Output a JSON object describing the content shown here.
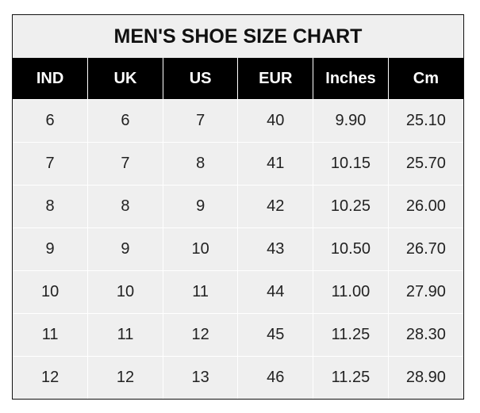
{
  "title": "MEN'S SHOE SIZE CHART",
  "columns": [
    "IND",
    "UK",
    "US",
    "EUR",
    "Inches",
    "Cm"
  ],
  "rows": [
    [
      "6",
      "6",
      "7",
      "40",
      "9.90",
      "25.10"
    ],
    [
      "7",
      "7",
      "8",
      "41",
      "10.15",
      "25.70"
    ],
    [
      "8",
      "8",
      "9",
      "42",
      "10.25",
      "26.00"
    ],
    [
      "9",
      "9",
      "10",
      "43",
      "10.50",
      "26.70"
    ],
    [
      "10",
      "10",
      "11",
      "44",
      "11.00",
      "27.90"
    ],
    [
      "11",
      "11",
      "12",
      "45",
      "11.25",
      "28.30"
    ],
    [
      "12",
      "12",
      "13",
      "46",
      "11.25",
      "28.90"
    ]
  ],
  "colors": {
    "header_bg": "#000000",
    "cell_bg": "#efefef"
  }
}
